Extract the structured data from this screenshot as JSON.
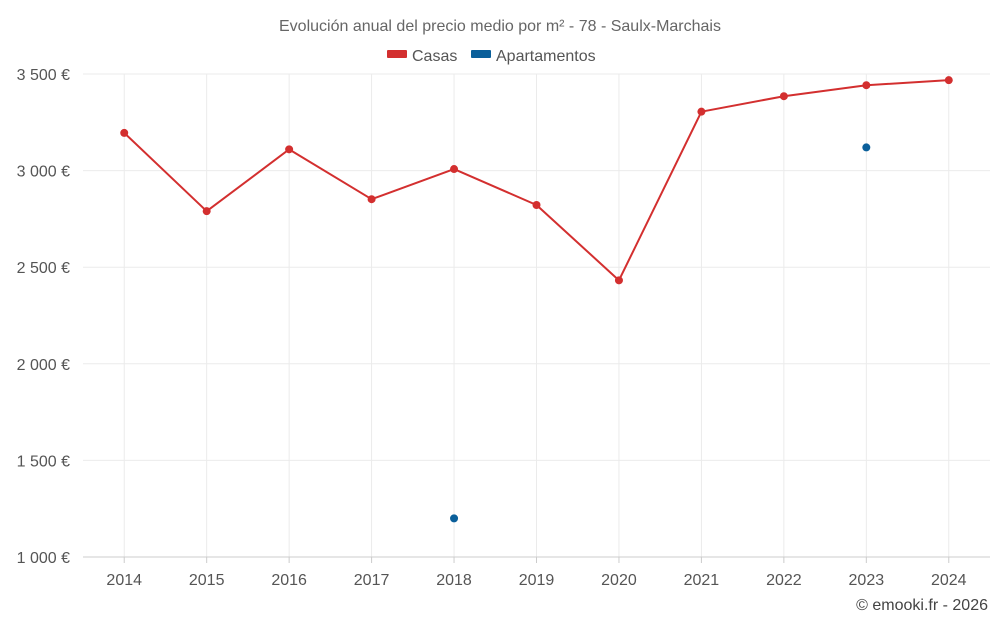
{
  "chart_data": {
    "type": "line",
    "title": "Evolución anual del precio medio por m² - 78 - Saulx-Marchais",
    "categories": [
      "2014",
      "2015",
      "2016",
      "2017",
      "2018",
      "2019",
      "2020",
      "2021",
      "2022",
      "2023",
      "2024"
    ],
    "ylim": [
      1000,
      3500
    ],
    "yticks": [
      1000,
      1500,
      2000,
      2500,
      3000,
      3500
    ],
    "ytick_labels": [
      "1 000 €",
      "1 500 €",
      "2 000 €",
      "2 500 €",
      "3 000 €",
      "3 500 €"
    ],
    "xlabel": "",
    "ylabel": "",
    "grid": true,
    "legend_position": "top-center",
    "series": [
      {
        "name": "Casas",
        "color": "#d32f2f",
        "style": "line",
        "values": [
          3195,
          2790,
          3110,
          2852,
          3008,
          2822,
          2432,
          3305,
          3385,
          3442,
          3468
        ]
      },
      {
        "name": "Apartamentos",
        "color": "#0a5f9a",
        "style": "points",
        "values": [
          null,
          null,
          null,
          null,
          1200,
          null,
          null,
          null,
          null,
          3120,
          null
        ]
      }
    ]
  },
  "credit": "© emooki.fr - 2026"
}
